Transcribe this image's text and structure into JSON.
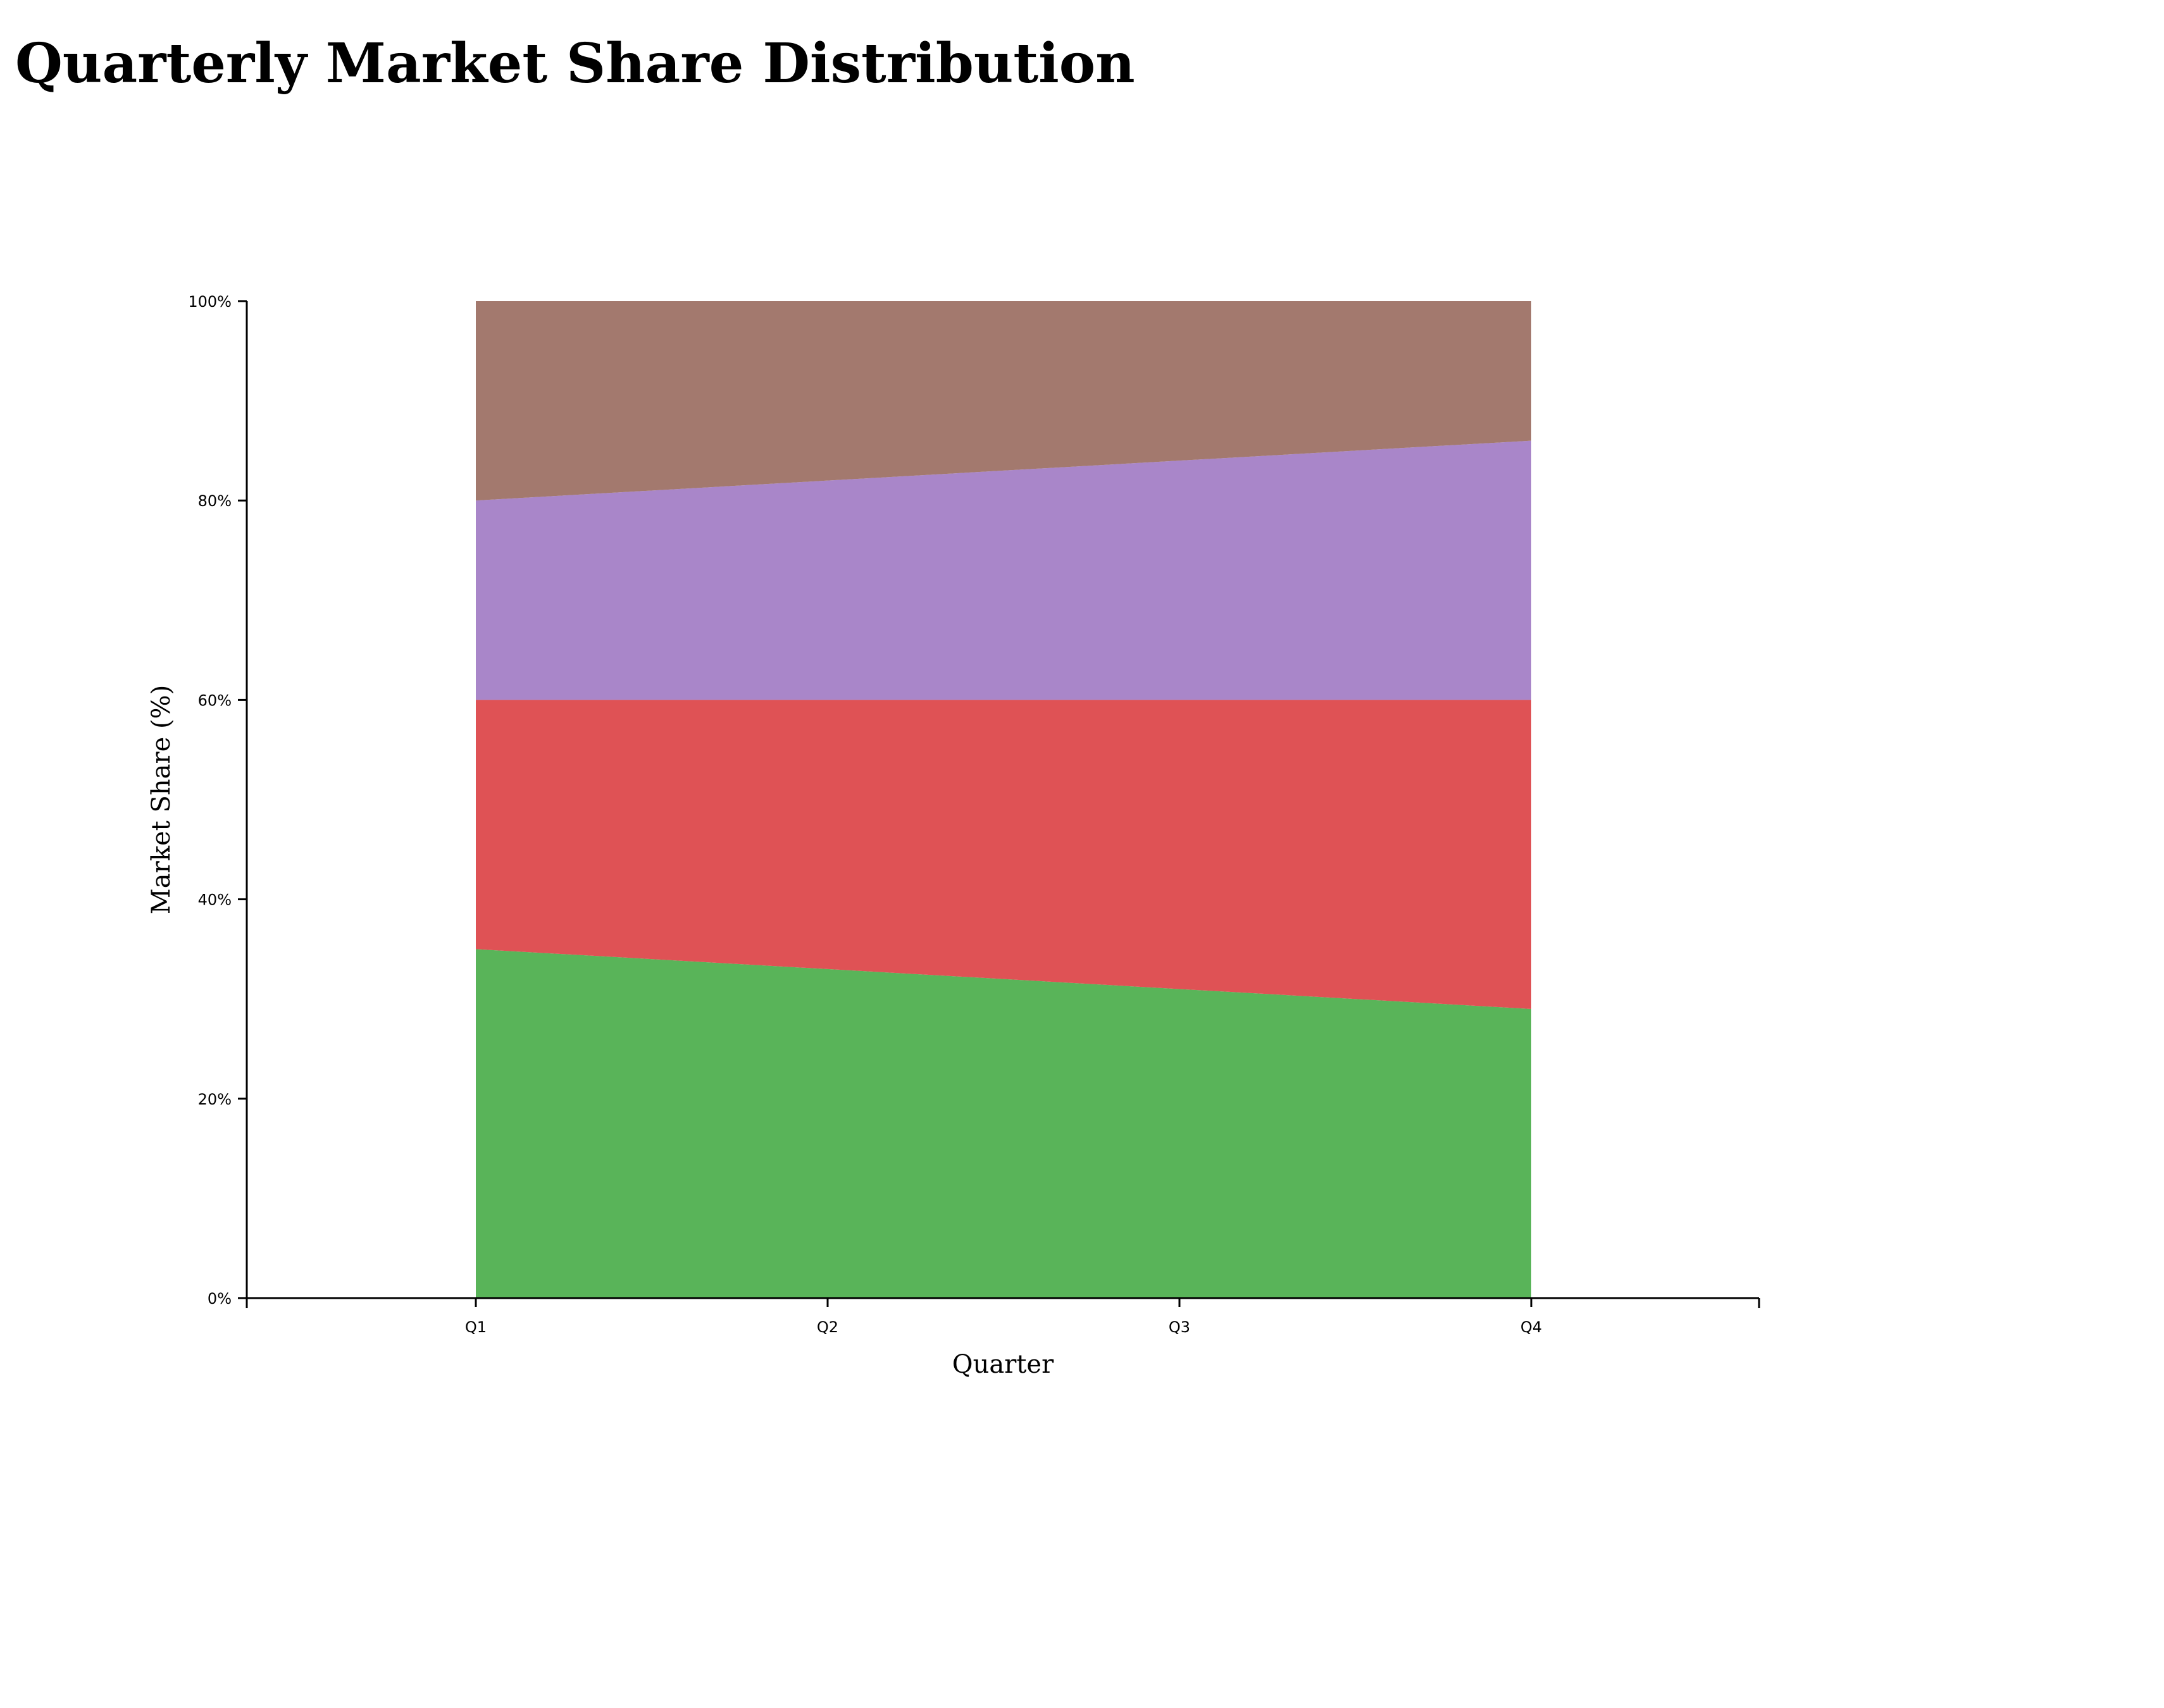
{
  "page": {
    "title": "Quarterly Market Share Distribution"
  },
  "chart_data": {
    "type": "area",
    "stacked": true,
    "title": "Quarterly Market Share Distribution",
    "xlabel": "Quarter",
    "ylabel": "Market Share (%)",
    "categories": [
      "Q1",
      "Q2",
      "Q3",
      "Q4"
    ],
    "ylim": [
      0,
      100
    ],
    "y_ticks": [
      "0%",
      "20%",
      "40%",
      "60%",
      "80%",
      "100%"
    ],
    "grid": false,
    "legend": "none",
    "series": [
      {
        "values": [
          35,
          33,
          31,
          29
        ],
        "color": "#59b459"
      },
      {
        "values": [
          25,
          27,
          29,
          31
        ],
        "color": "#df5255"
      },
      {
        "values": [
          20,
          22,
          24,
          26
        ],
        "color": "#a986c9"
      },
      {
        "values": [
          20,
          18,
          16,
          14
        ],
        "color": "#a3796e"
      }
    ]
  }
}
